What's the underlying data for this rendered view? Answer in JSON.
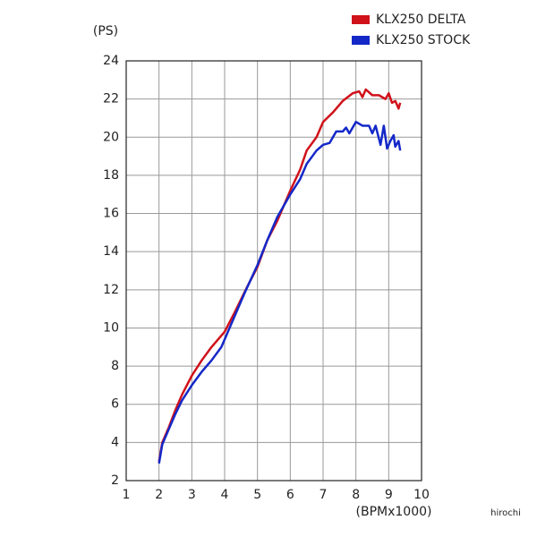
{
  "chart_data": {
    "type": "line",
    "y_label": "(PS)",
    "x_label": "(BPMx1000)",
    "watermark": "hirochi",
    "xlim": [
      1,
      10
    ],
    "ylim": [
      2,
      24
    ],
    "xticks": [
      1,
      2,
      3,
      4,
      5,
      6,
      7,
      8,
      9,
      10
    ],
    "yticks": [
      2,
      4,
      6,
      8,
      10,
      12,
      14,
      16,
      18,
      20,
      22,
      24
    ],
    "grid": true,
    "legend": "top-right",
    "series": [
      {
        "name": "KLX250 DELTA",
        "color": "#d0121b",
        "x": [
          2.0,
          2.1,
          2.3,
          2.5,
          2.7,
          3.0,
          3.3,
          3.6,
          4.0,
          4.3,
          4.7,
          5.0,
          5.3,
          5.6,
          6.0,
          6.3,
          6.5,
          6.8,
          7.0,
          7.3,
          7.6,
          7.9,
          8.1,
          8.2,
          8.3,
          8.5,
          8.7,
          8.9,
          9.0,
          9.1,
          9.2,
          9.3,
          9.35
        ],
        "values": [
          3.0,
          4.0,
          4.8,
          5.7,
          6.5,
          7.5,
          8.3,
          9.0,
          9.8,
          10.8,
          12.2,
          13.2,
          14.6,
          15.6,
          17.2,
          18.3,
          19.3,
          20.0,
          20.8,
          21.3,
          21.9,
          22.3,
          22.4,
          22.1,
          22.5,
          22.2,
          22.2,
          22.0,
          22.3,
          21.8,
          21.9,
          21.5,
          21.8
        ]
      },
      {
        "name": "KLX250 STOCK",
        "color": "#1428c8",
        "x": [
          2.0,
          2.1,
          2.3,
          2.5,
          2.7,
          3.0,
          3.3,
          3.6,
          3.9,
          4.2,
          4.6,
          5.0,
          5.3,
          5.6,
          6.0,
          6.3,
          6.5,
          6.8,
          7.0,
          7.2,
          7.4,
          7.6,
          7.7,
          7.8,
          8.0,
          8.2,
          8.4,
          8.5,
          8.6,
          8.75,
          8.85,
          8.95,
          9.05,
          9.15,
          9.2,
          9.3,
          9.35
        ],
        "values": [
          2.9,
          3.9,
          4.7,
          5.5,
          6.2,
          7.0,
          7.7,
          8.3,
          9.0,
          10.2,
          11.8,
          13.3,
          14.6,
          15.8,
          17.0,
          17.8,
          18.6,
          19.3,
          19.6,
          19.7,
          20.3,
          20.3,
          20.5,
          20.2,
          20.8,
          20.6,
          20.6,
          20.2,
          20.6,
          19.6,
          20.6,
          19.4,
          19.8,
          20.1,
          19.5,
          19.8,
          19.3
        ]
      }
    ]
  }
}
